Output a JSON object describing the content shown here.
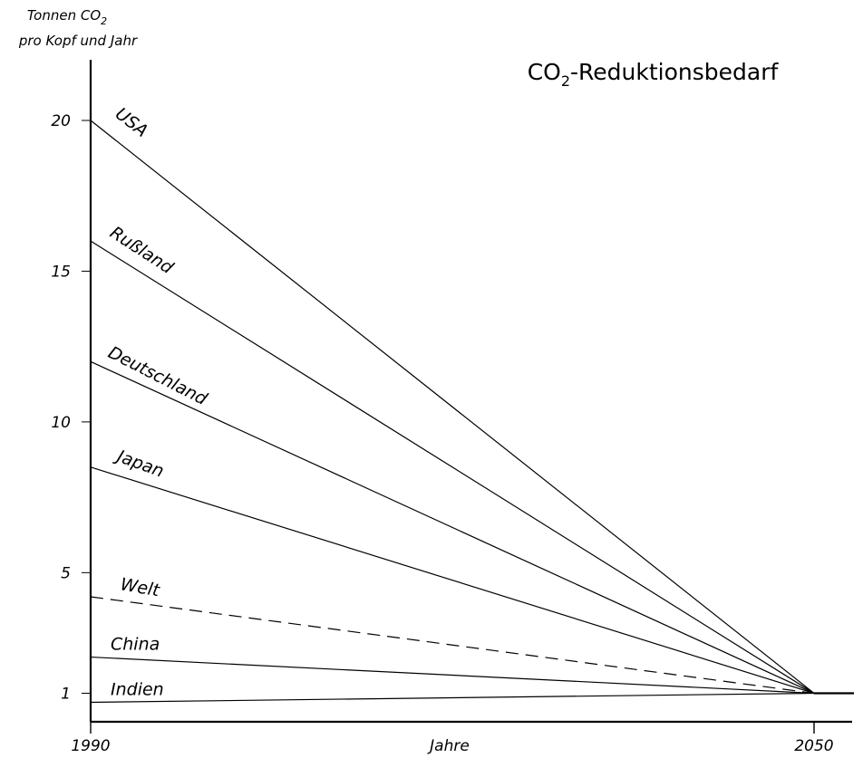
{
  "chart_data": {
    "type": "line",
    "title": "CO",
    "title_sub": "2",
    "title_rest": "-Reduktionsbedarf",
    "ylabel_line1": "Tonnen CO",
    "ylabel_line1_sub": "2",
    "ylabel_line2": "pro Kopf und Jahr",
    "xlabel": "Jahre",
    "x_ticks": [
      "1990",
      "2050"
    ],
    "y_ticks": [
      "1",
      "5",
      "10",
      "15",
      "20"
    ],
    "xlim": [
      1990,
      2052
    ],
    "ylim": [
      0,
      22
    ],
    "series": [
      {
        "name": "USA",
        "x": [
          1990,
          2050
        ],
        "y": [
          20,
          1
        ],
        "style": "solid"
      },
      {
        "name": "Rußland",
        "x": [
          1990,
          2050
        ],
        "y": [
          16,
          1
        ],
        "style": "solid"
      },
      {
        "name": "Deutschland",
        "x": [
          1990,
          2050
        ],
        "y": [
          12,
          1
        ],
        "style": "solid"
      },
      {
        "name": "Japan",
        "x": [
          1990,
          2050
        ],
        "y": [
          8.5,
          1
        ],
        "style": "solid"
      },
      {
        "name": "Welt",
        "x": [
          1990,
          2050
        ],
        "y": [
          4.2,
          1
        ],
        "style": "dashed"
      },
      {
        "name": "China",
        "x": [
          1990,
          2050
        ],
        "y": [
          2.2,
          1
        ],
        "style": "solid"
      },
      {
        "name": "Indien",
        "x": [
          1990,
          2050
        ],
        "y": [
          0.7,
          1
        ],
        "style": "solid"
      }
    ],
    "target_line": {
      "x": [
        2050,
        2052
      ],
      "y": [
        1,
        1
      ]
    }
  }
}
